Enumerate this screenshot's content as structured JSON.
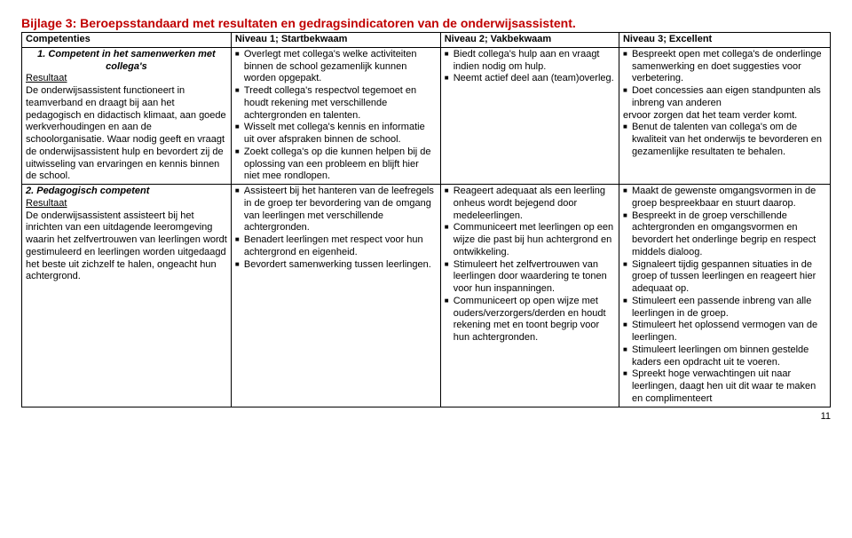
{
  "page": {
    "title": "Bijlage 3: Beroepsstandaard met resultaten en gedragsindicatoren van de onderwijsassistent.",
    "pagenum": "11"
  },
  "headers": {
    "c0": "Competenties",
    "c1": "Niveau 1; Startbekwaam",
    "c2": "Niveau 2; Vakbekwaam",
    "c3": "Niveau 3; Excellent"
  },
  "row1": {
    "comp_title": "1. Competent in het samenwerken met collega's",
    "res_label": "Resultaat",
    "res_text": "De onderwijsassistent functioneert in teamverband en draagt bij aan het pedagogisch en didactisch klimaat, aan goede werkverhoudingen en aan de schoolorganisatie. Waar nodig geeft en vraagt de onderwijsassistent hulp en bevordert zij de uitwisseling van ervaringen en kennis binnen de school.",
    "n1": [
      "Overlegt met collega's welke activiteiten binnen de school gezamenlijk kunnen worden opgepakt.",
      "Treedt collega's respectvol tegemoet en houdt rekening met verschillende achtergronden en talenten.",
      "Wisselt met collega's kennis en informatie uit over afspraken binnen de school.",
      "Zoekt collega's op die kunnen helpen bij de oplossing van een probleem en blijft hier niet mee rondlopen."
    ],
    "n2": [
      "Biedt collega's hulp aan en vraagt indien nodig om hulp.",
      "Neemt actief deel aan (team)overleg."
    ],
    "n3": [
      "Bespreekt open met collega's de onderlinge samenwerking en doet suggesties voor verbetering.",
      "Doet concessies aan eigen standpunten als inbreng van anderen",
      "ervoor zorgen dat het team verder komt.",
      "Benut de talenten van collega's om de kwaliteit van het onderwijs te bevorderen en gezamenlijke resultaten te behalen."
    ]
  },
  "row2": {
    "comp_title": "2. Pedagogisch competent",
    "res_label": "Resultaat",
    "res_text": "De onderwijsassistent assisteert bij het inrichten van een uitdagende leeromgeving  waarin het zelfvertrouwen van leerlingen wordt gestimuleerd en leerlingen worden uitgedaagd het beste uit zichzelf te halen, ongeacht hun achtergrond.",
    "n1": [
      "Assisteert bij het hanteren van de leefregels in de groep ter bevordering van de omgang van leerlingen met verschillende achtergronden.",
      "Benadert leerlingen met respect voor hun achtergrond en eigenheid.",
      "Bevordert samenwerking tussen leerlingen."
    ],
    "n2": [
      "Reageert adequaat als een leerling onheus wordt bejegend door medeleerlingen.",
      "Communiceert met leerlingen op een wijze die past bij hun achtergrond en ontwikkeling.",
      "Stimuleert het zelfvertrouwen van leerlingen door waardering te tonen voor hun inspanningen.",
      "Communiceert op open wijze met ouders/verzorgers/derden en houdt rekening met en toont begrip voor hun achtergronden."
    ],
    "n3": [
      "Maakt de gewenste omgangsvormen in de groep bespreekbaar en stuurt daarop.",
      "Bespreekt in de groep verschillende achtergronden en omgangsvormen en bevordert het onderlinge begrip en respect middels dialoog.",
      "Signaleert tijdig gespannen situaties in de groep of tussen leerlingen en reageert hier adequaat op.",
      "Stimuleert een passende inbreng van alle leerlingen in de groep.",
      "Stimuleert het oplossend vermogen van de leerlingen.",
      "Stimuleert leerlingen om binnen gestelde kaders een opdracht uit te voeren.",
      "Spreekt hoge verwachtingen uit naar leerlingen, daagt hen uit dit waar te maken en complimenteert"
    ]
  }
}
